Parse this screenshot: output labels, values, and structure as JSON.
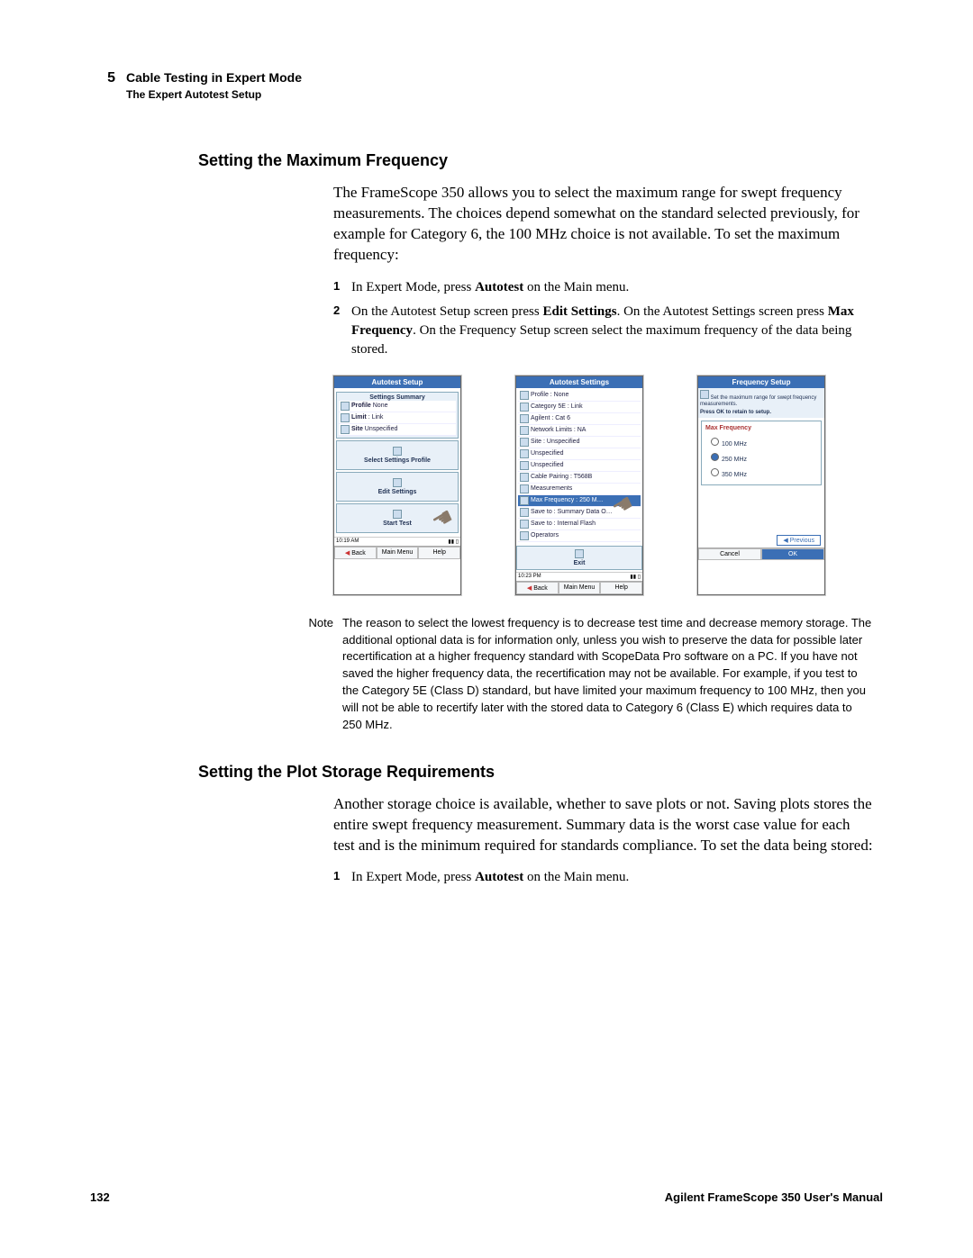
{
  "header": {
    "chapter_num": "5",
    "chapter_title": "Cable Testing in Expert Mode",
    "chapter_sub": "The Expert Autotest Setup"
  },
  "section1": {
    "heading": "Setting the Maximum Frequency",
    "body": "The FrameScope 350 allows you to select the maximum range for swept frequency measurements. The choices depend somewhat on the standard selected previously, for example for Category 6, the 100 MHz choice is not available. To set the maximum frequency:",
    "steps": [
      {
        "n": "1",
        "pre": "In Expert Mode, press ",
        "b": "Autotest",
        "post": " on the Main menu."
      },
      {
        "n": "2",
        "pre": "On the Autotest Setup screen press ",
        "b": "Edit Settings",
        "mid": ". On the Autotest Settings screen press ",
        "b2": "Max Frequency",
        "post": ". On the Frequency Setup screen select the maximum frequency of the data being stored."
      }
    ]
  },
  "screens": {
    "s1": {
      "title": "Autotest Setup",
      "summary_label": "Settings Summary",
      "rows": [
        "None",
        ": Link",
        "Unspecified"
      ],
      "row_prefixes": [
        "Profile",
        "Limit",
        "Site"
      ],
      "blocks": [
        "Select Settings Profile",
        "Edit Settings",
        "Start Test"
      ],
      "status_time": "10:19 AM",
      "buttons": [
        "Back",
        "Main Menu",
        "Help"
      ]
    },
    "s2": {
      "title": "Autotest Settings",
      "rows": [
        "Profile : None",
        "Category 5E : Link",
        "Agilent : Cat 6",
        "Network Limits : NA",
        "Site : Unspecified",
        "Unspecified",
        "Unspecified",
        "Cable Pairing : T568B",
        "Measurements",
        "Max Frequency : 250 M…",
        "Save to : Summary Data O…",
        "Save to : Internal Flash",
        "Operators"
      ],
      "selected_index": 9,
      "bottom_label": "Exit",
      "status_time": "10:23 PM",
      "buttons": [
        "Back",
        "Main Menu",
        "Help"
      ]
    },
    "s3": {
      "title": "Frequency Setup",
      "head1": "Set the maximum range for swept frequency measurements.",
      "head2": "Press OK to retain to setup.",
      "group_label": "Max Frequency",
      "options": [
        "100 MHz",
        "250 MHz",
        "350 MHz"
      ],
      "selected": 1,
      "prev": "Previous",
      "ok": "OK",
      "cancel": "Cancel"
    }
  },
  "note": {
    "label": "Note",
    "text": "The reason to select the lowest frequency is to decrease test time and decrease memory storage. The additional optional data is for information only, unless you wish to preserve the data for possible later recertification at a higher frequency standard with ScopeData Pro software on a PC. If you have not saved the higher frequency data, the recertification may not be available. For example, if you test to the Category 5E (Class D) standard, but have limited your maximum frequency to 100 MHz, then you will not be able to recertify later with the stored data to Category 6 (Class E) which requires data to 250 MHz."
  },
  "section2": {
    "heading": "Setting the Plot Storage Requirements",
    "body": "Another storage choice is available, whether to save plots or not. Saving plots stores the entire swept frequency measurement. Summary data is the worst case value for each test and is the minimum required for standards compliance. To set the data being stored:",
    "steps": [
      {
        "n": "1",
        "pre": "In Expert Mode, press ",
        "b": "Autotest",
        "post": " on the Main menu."
      }
    ]
  },
  "footer": {
    "page": "132",
    "manual": "Agilent FrameScope 350 User's Manual"
  }
}
